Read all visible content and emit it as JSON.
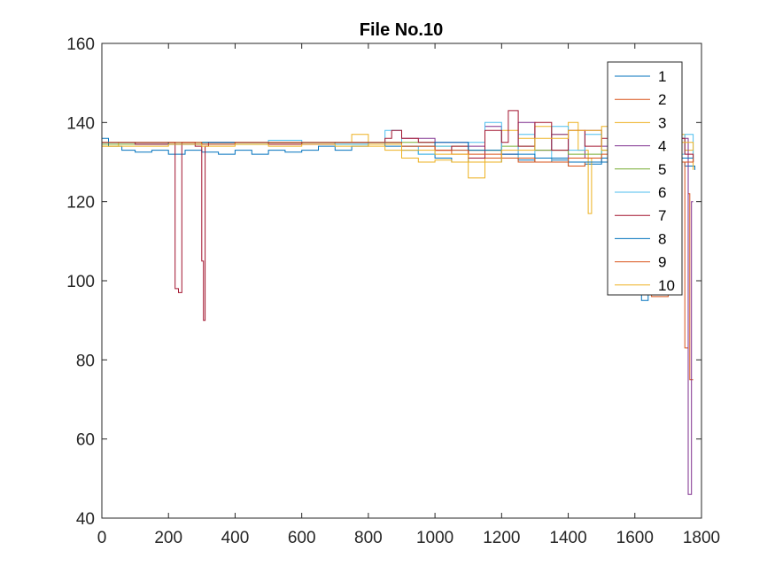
{
  "chart_data": {
    "type": "line",
    "title": "File No.10",
    "xlabel": "",
    "ylabel": "",
    "xlim": [
      0,
      1800
    ],
    "ylim": [
      40,
      160
    ],
    "xticks": [
      0,
      200,
      400,
      600,
      800,
      1000,
      1200,
      1400,
      1600,
      1800
    ],
    "yticks": [
      40,
      60,
      80,
      100,
      120,
      140,
      160
    ],
    "grid": false,
    "legend_position": "top-right",
    "series": [
      {
        "name": "1",
        "color": "#0072BD",
        "x": [
          0,
          20,
          60,
          100,
          150,
          200,
          250,
          300,
          350,
          400,
          450,
          500,
          550,
          600,
          650,
          700,
          750,
          800,
          850,
          900,
          950,
          1000,
          1050,
          1100,
          1150,
          1200,
          1250,
          1300,
          1350,
          1400,
          1450,
          1500,
          1550,
          1600,
          1620,
          1640,
          1660,
          1700,
          1750,
          1780
        ],
        "y": [
          136,
          134,
          133,
          132.5,
          133,
          132,
          133,
          132.5,
          132,
          133,
          132,
          133,
          132.5,
          133,
          134,
          133,
          134,
          135,
          134,
          133,
          132,
          131,
          130,
          131,
          130,
          131,
          130.5,
          130,
          130.5,
          129,
          129.5,
          130,
          130,
          130,
          95,
          130,
          128,
          130,
          129,
          128
        ]
      },
      {
        "name": "2",
        "color": "#D95319",
        "x": [
          0,
          50,
          100,
          200,
          300,
          400,
          500,
          600,
          700,
          800,
          900,
          1000,
          1050,
          1100,
          1150,
          1200,
          1250,
          1300,
          1350,
          1400,
          1450,
          1500,
          1550,
          1600,
          1650,
          1700,
          1740,
          1750,
          1760,
          1765,
          1775
        ],
        "y": [
          135,
          135,
          134.5,
          135,
          134.5,
          135,
          135,
          134.5,
          135,
          135,
          134,
          133,
          132,
          133,
          131,
          132,
          130,
          131,
          130,
          129,
          130,
          131,
          129,
          131,
          130,
          131,
          130,
          83,
          122,
          75,
          75
        ]
      },
      {
        "name": "3",
        "color": "#EDB120",
        "x": [
          0,
          50,
          100,
          200,
          300,
          400,
          500,
          600,
          700,
          750,
          800,
          850,
          900,
          950,
          1000,
          1050,
          1100,
          1150,
          1200,
          1250,
          1300,
          1350,
          1400,
          1430,
          1460,
          1470,
          1500,
          1550,
          1600,
          1650,
          1700,
          1750,
          1775
        ],
        "y": [
          134,
          135,
          135,
          134.5,
          135,
          135,
          134.5,
          135,
          135,
          137,
          134,
          133,
          131,
          130,
          130.5,
          130,
          126,
          133,
          138,
          136,
          139,
          137,
          140,
          133,
          117,
          131,
          139,
          137,
          140,
          138,
          137,
          133,
          128
        ]
      },
      {
        "name": "4",
        "color": "#7E2F8E",
        "x": [
          0,
          100,
          200,
          300,
          400,
          500,
          600,
          700,
          800,
          900,
          1000,
          1100,
          1150,
          1200,
          1250,
          1300,
          1350,
          1400,
          1450,
          1500,
          1550,
          1600,
          1650,
          1700,
          1740,
          1760,
          1765,
          1770,
          1775
        ],
        "y": [
          135,
          135,
          134.5,
          135,
          135,
          135,
          134.5,
          135,
          135,
          136,
          135,
          134,
          139,
          132,
          140,
          133,
          137,
          131,
          138,
          134,
          132,
          137,
          135,
          134,
          136,
          46,
          46,
          120,
          120
        ]
      },
      {
        "name": "5",
        "color": "#77AC30",
        "x": [
          0,
          100,
          200,
          300,
          400,
          500,
          600,
          700,
          800,
          900,
          1000,
          1100,
          1200,
          1300,
          1400,
          1500,
          1600,
          1700,
          1775
        ],
        "y": [
          134.5,
          134.5,
          135,
          135,
          134.5,
          135,
          135,
          134.5,
          135,
          135,
          134,
          133,
          134,
          133,
          132,
          133,
          132,
          131,
          132
        ]
      },
      {
        "name": "6",
        "color": "#4DBEEE",
        "x": [
          0,
          100,
          200,
          300,
          400,
          500,
          600,
          700,
          800,
          850,
          900,
          950,
          1000,
          1050,
          1100,
          1150,
          1200,
          1250,
          1300,
          1350,
          1400,
          1450,
          1500,
          1550,
          1600,
          1650,
          1700,
          1750,
          1775
        ],
        "y": [
          135,
          134.5,
          135,
          134.5,
          135,
          135.5,
          135,
          134.5,
          135,
          138,
          134,
          132,
          134,
          133,
          135,
          140,
          131,
          137,
          130,
          139,
          133,
          137,
          131,
          138,
          134,
          136,
          132,
          137,
          131
        ]
      },
      {
        "name": "7",
        "color": "#A2142F",
        "x": [
          0,
          100,
          200,
          220,
          230,
          240,
          280,
          300,
          305,
          310,
          320,
          400,
          500,
          600,
          700,
          800,
          850,
          870,
          900,
          950,
          1000,
          1050,
          1100,
          1150,
          1200,
          1220,
          1250,
          1300,
          1350,
          1400,
          1450,
          1500,
          1550,
          1600,
          1650,
          1700,
          1750,
          1775
        ],
        "y": [
          135,
          134.5,
          135,
          98,
          97,
          135,
          134,
          105,
          90,
          134,
          135,
          135,
          134.5,
          135,
          135,
          135,
          136,
          138,
          136,
          135,
          133,
          134,
          131,
          138,
          135,
          143,
          134,
          140,
          133,
          138,
          134,
          136,
          133,
          137,
          134,
          136,
          132,
          130
        ]
      },
      {
        "name": "8",
        "color": "#0072BD",
        "x": [
          0,
          100,
          200,
          300,
          400,
          500,
          600,
          700,
          800,
          900,
          1000,
          1100,
          1200,
          1300,
          1400,
          1500,
          1600,
          1700,
          1775
        ],
        "y": [
          135,
          135,
          134.5,
          135,
          135,
          135,
          135,
          135,
          135,
          134,
          135,
          133,
          132,
          131,
          130,
          131,
          130,
          131,
          130
        ]
      },
      {
        "name": "9",
        "color": "#D95319",
        "x": [
          0,
          100,
          200,
          300,
          400,
          500,
          600,
          700,
          800,
          900,
          1000,
          1100,
          1200,
          1300,
          1400,
          1500,
          1600,
          1650,
          1700,
          1775
        ],
        "y": [
          135,
          135,
          135,
          134.5,
          135,
          135,
          135,
          135,
          135,
          134,
          133,
          132,
          131,
          130,
          131,
          132,
          130,
          96,
          130,
          131
        ]
      },
      {
        "name": "10",
        "color": "#EDB120",
        "x": [
          0,
          100,
          200,
          300,
          400,
          500,
          600,
          700,
          800,
          900,
          1000,
          1100,
          1200,
          1300,
          1400,
          1500,
          1600,
          1700,
          1775
        ],
        "y": [
          134,
          134,
          134.5,
          134,
          134.5,
          134,
          134.5,
          134,
          134.5,
          133,
          132,
          130,
          133,
          136,
          138,
          133,
          139,
          135,
          133
        ]
      }
    ]
  }
}
